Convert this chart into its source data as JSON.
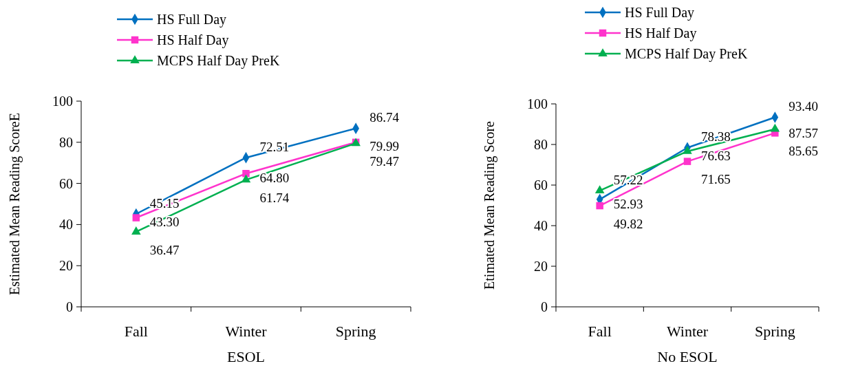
{
  "chart_data": [
    {
      "type": "line",
      "xlabel": "ESOL",
      "ylabel": "Estimated Mean Reading ScoreE",
      "categories": [
        "Fall",
        "Winter",
        "Spring"
      ],
      "ylim": [
        0,
        100
      ],
      "yticks": [
        0,
        20,
        40,
        60,
        80,
        100
      ],
      "legend": "top",
      "grid": false,
      "series": [
        {
          "name": "HS Full Day",
          "color": "#0070c0",
          "marker": "diamond",
          "values": [
            45.15,
            72.51,
            86.74
          ],
          "value_labels": [
            "45.15",
            "72.51",
            "86.74"
          ]
        },
        {
          "name": "HS Half Day",
          "color": "#ff33cc",
          "marker": "square",
          "values": [
            43.3,
            64.8,
            79.99
          ],
          "value_labels": [
            "43.30",
            "64.80",
            "79.99"
          ]
        },
        {
          "name": "MCPS Half Day PreK",
          "color": "#00b050",
          "marker": "triangle",
          "values": [
            36.47,
            61.74,
            79.47
          ],
          "value_labels": [
            "36.47",
            "61.74",
            "79.47"
          ]
        }
      ]
    },
    {
      "type": "line",
      "xlabel": "No ESOL",
      "ylabel": "Etimated Mean Reading Score",
      "categories": [
        "Fall",
        "Winter",
        "Spring"
      ],
      "ylim": [
        0,
        100
      ],
      "yticks": [
        0,
        20,
        40,
        60,
        80,
        100
      ],
      "legend": "top",
      "grid": false,
      "series": [
        {
          "name": "HS Full Day",
          "color": "#0070c0",
          "marker": "diamond",
          "values": [
            52.93,
            78.38,
            93.4
          ],
          "value_labels": [
            "52.93",
            "78.38",
            "93.40"
          ]
        },
        {
          "name": "HS Half Day",
          "color": "#ff33cc",
          "marker": "square",
          "values": [
            49.82,
            71.65,
            85.65
          ],
          "value_labels": [
            "49.82",
            "71.65",
            "85.65"
          ]
        },
        {
          "name": "MCPS Half Day PreK",
          "color": "#00b050",
          "marker": "triangle",
          "values": [
            57.22,
            76.63,
            87.57
          ],
          "value_labels": [
            "57.22",
            "76.63",
            "87.57"
          ]
        }
      ]
    }
  ]
}
